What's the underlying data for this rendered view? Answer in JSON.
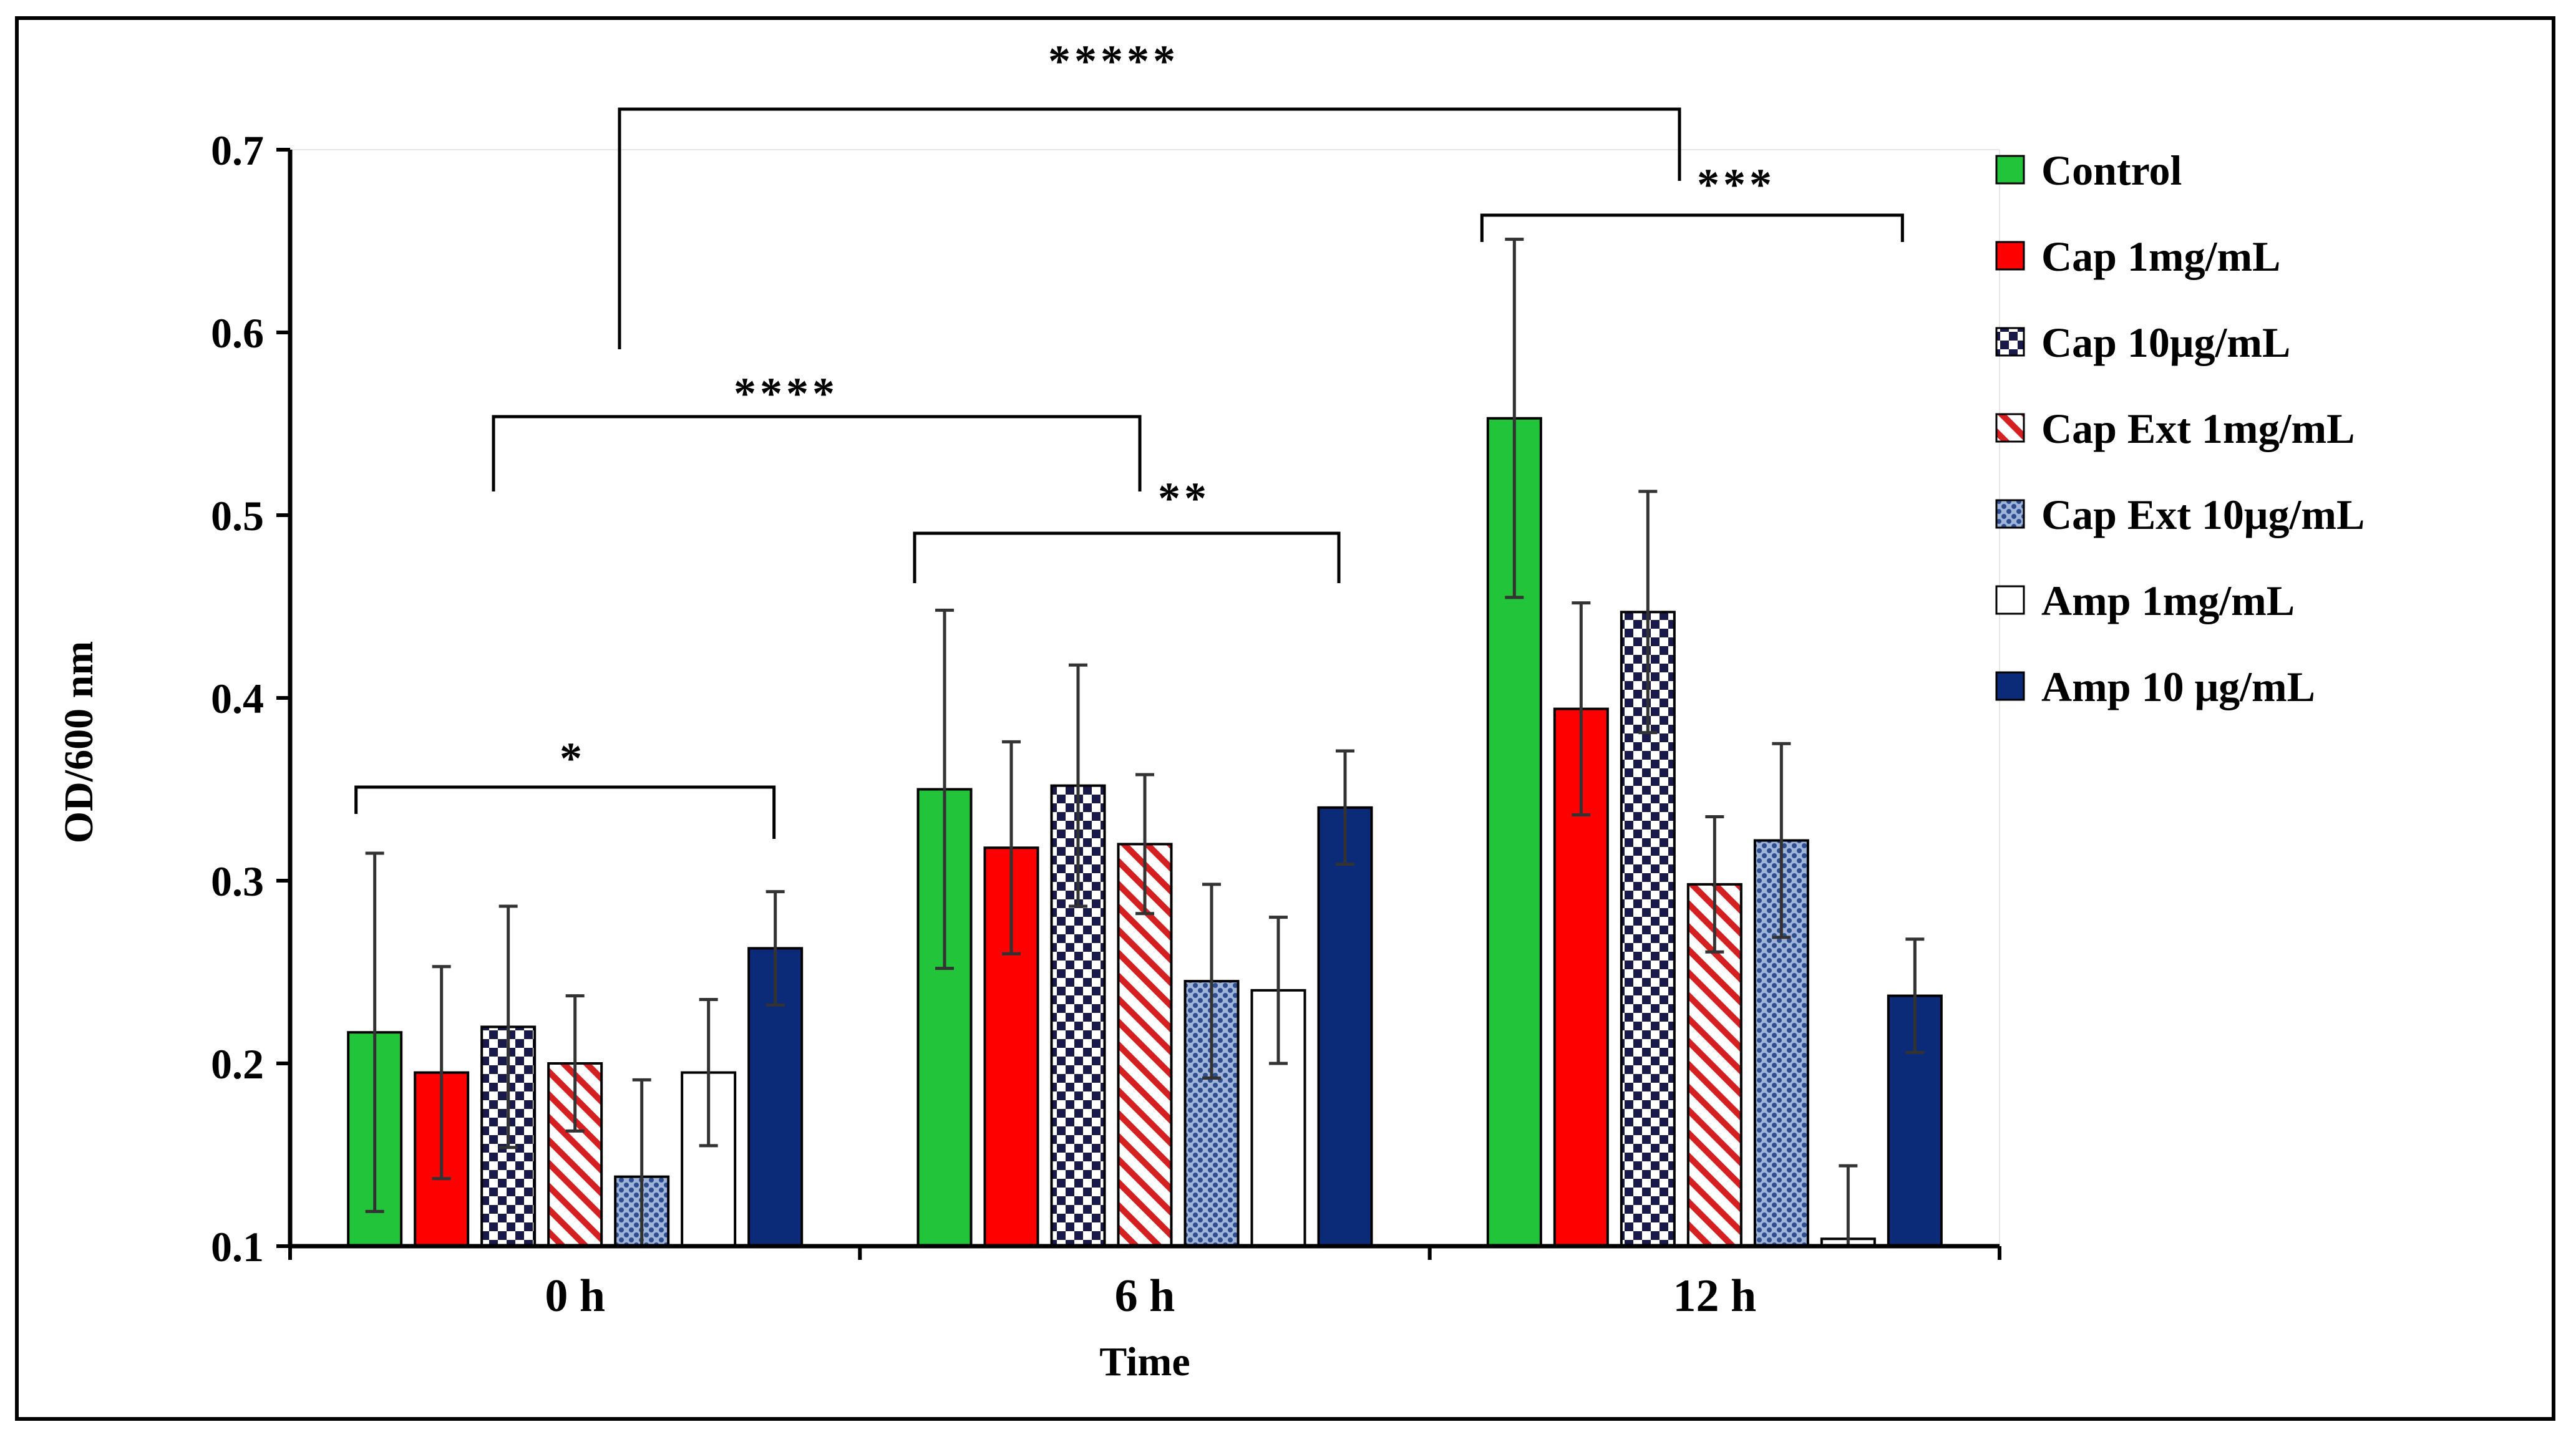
{
  "chart_data": {
    "type": "bar",
    "title": "",
    "xlabel": "Time",
    "ylabel": "OD/600 nm",
    "ylim": [
      0.1,
      0.7
    ],
    "yticks": [
      "0.1",
      "0.2",
      "0.3",
      "0.4",
      "0.5",
      "0.6",
      "0.7"
    ],
    "categories": [
      "0 h",
      "6 h",
      "12 h"
    ],
    "series": [
      {
        "name": "Control",
        "color": "#22c43a",
        "pattern": "solid",
        "values": [
          0.217,
          0.35,
          0.553
        ],
        "errors": [
          0.098,
          0.098,
          0.098
        ]
      },
      {
        "name": "Cap 1mg/mL",
        "color": "#ff0000",
        "pattern": "solid",
        "values": [
          0.195,
          0.318,
          0.394
        ],
        "errors": [
          0.058,
          0.058,
          0.058
        ]
      },
      {
        "name": "Cap 10μg/mL",
        "color": "#1a1a4a",
        "pattern": "checker",
        "values": [
          0.22,
          0.352,
          0.447
        ],
        "errors": [
          0.066,
          0.066,
          0.066
        ]
      },
      {
        "name": "Cap Ext 1mg/mL",
        "color": "#d42020",
        "pattern": "diagonal",
        "values": [
          0.2,
          0.32,
          0.298
        ],
        "errors": [
          0.037,
          0.038,
          0.037
        ]
      },
      {
        "name": "Cap Ext 10μg/mL",
        "color": "#3a5a9a",
        "pattern": "dots",
        "values": [
          0.138,
          0.245,
          0.322
        ],
        "errors": [
          0.053,
          0.053,
          0.053
        ]
      },
      {
        "name": "Amp 1mg/mL",
        "color": "#ffffff",
        "pattern": "open",
        "values": [
          0.195,
          0.24,
          0.104
        ],
        "errors": [
          0.04,
          0.04,
          0.04
        ]
      },
      {
        "name": "Amp 10 μg/mL",
        "color": "#0b2a78",
        "pattern": "solid",
        "values": [
          0.263,
          0.34,
          0.237
        ],
        "errors": [
          0.031,
          0.031,
          0.031
        ]
      }
    ],
    "significance": [
      {
        "label": "*",
        "from": "0 h: Control",
        "to": "0 h: Amp 10 μg/mL"
      },
      {
        "label": "**",
        "from": "6 h: Control",
        "to": "6 h: Amp 10 μg/mL"
      },
      {
        "label": "***",
        "from": "12 h: Control",
        "to": "12 h: Amp 10 μg/mL"
      },
      {
        "label": "****",
        "from": "0 h",
        "to": "6 h"
      },
      {
        "label": "*****",
        "from": "0 h",
        "to": "12 h"
      }
    ]
  }
}
